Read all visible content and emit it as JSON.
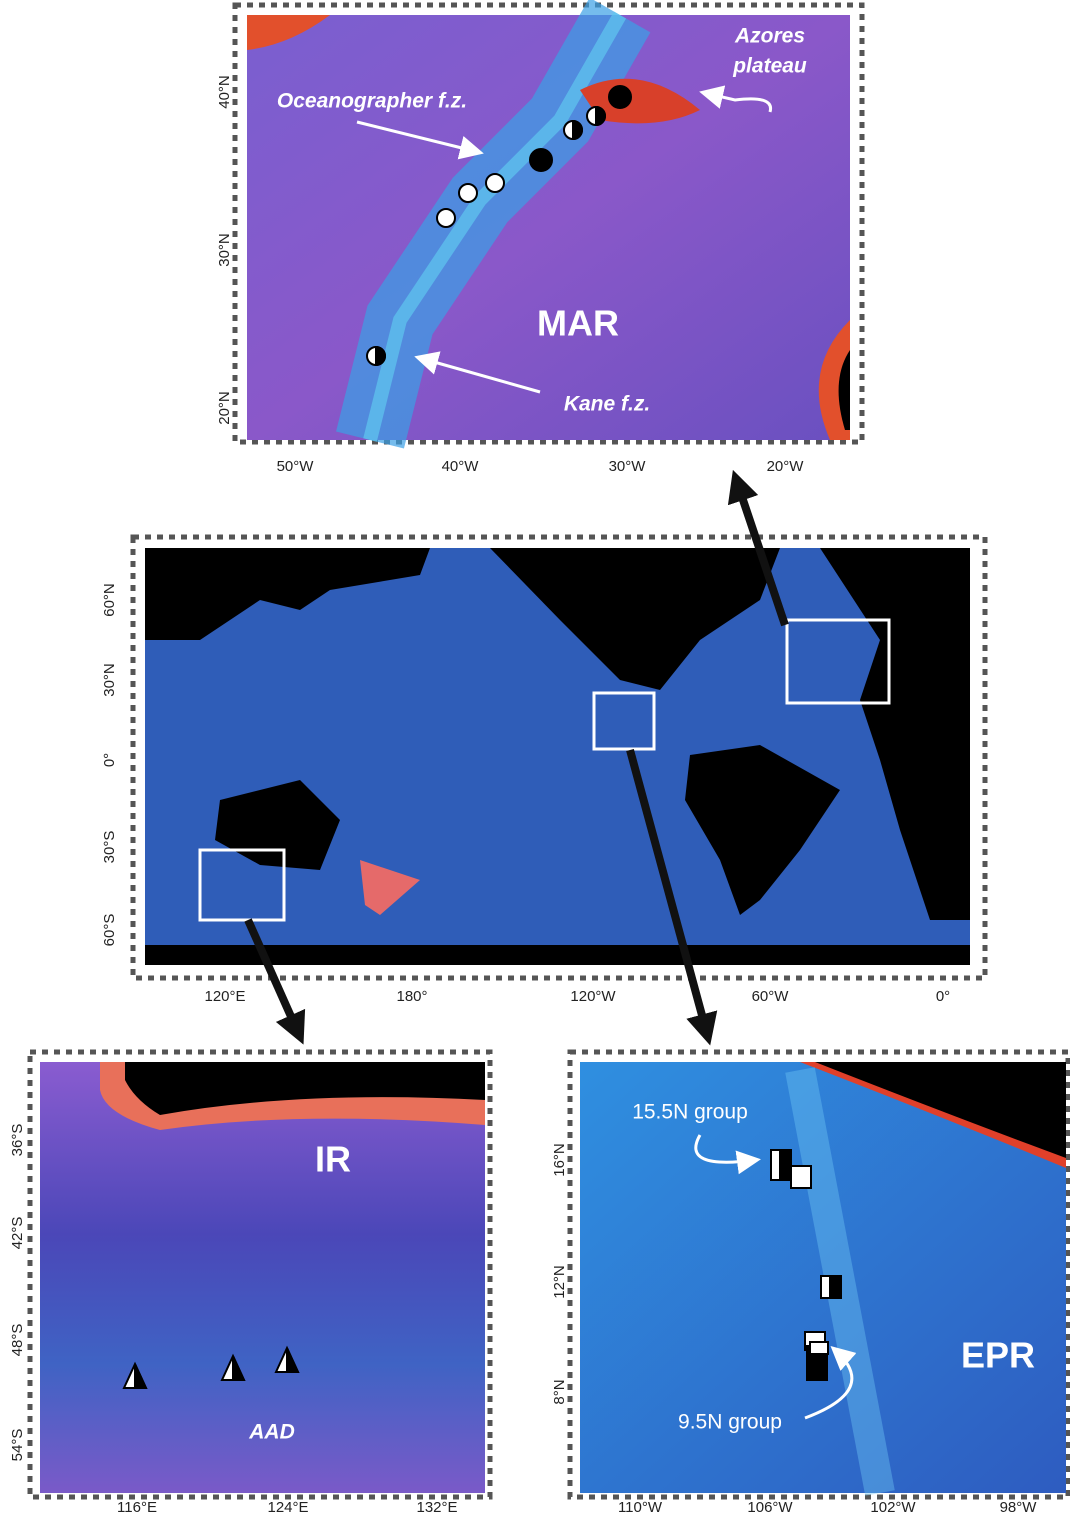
{
  "mar_panel": {
    "lat_labels": [
      "40°N",
      "30°N",
      "20°N"
    ],
    "lon_labels": [
      "50°W",
      "40°W",
      "30°W",
      "20°W"
    ],
    "annotations": {
      "azores_line1": "Azores",
      "azores_line2": "plateau",
      "oceanographer": "Oceanographer f.z.",
      "region": "MAR",
      "kane": "Kane f.z."
    }
  },
  "world_panel": {
    "lat_labels": [
      "60°N",
      "30°N",
      "0°",
      "30°S",
      "60°S"
    ],
    "lon_labels": [
      "120°E",
      "180°",
      "120°W",
      "60°W",
      "0°"
    ]
  },
  "ir_panel": {
    "lat_labels": [
      "36°S",
      "42°S",
      "48°S",
      "54°S"
    ],
    "lon_labels": [
      "116°E",
      "124°E",
      "132°E"
    ],
    "annotations": {
      "region": "IR",
      "ridge": "AAD"
    }
  },
  "epr_panel": {
    "lat_labels": [
      "16°N",
      "12°N",
      "8°N"
    ],
    "lon_labels": [
      "110°W",
      "106°W",
      "102°W",
      "98°W"
    ],
    "annotations": {
      "group_north": "15.5N group",
      "group_south": "9.5N group",
      "region": "EPR"
    }
  }
}
